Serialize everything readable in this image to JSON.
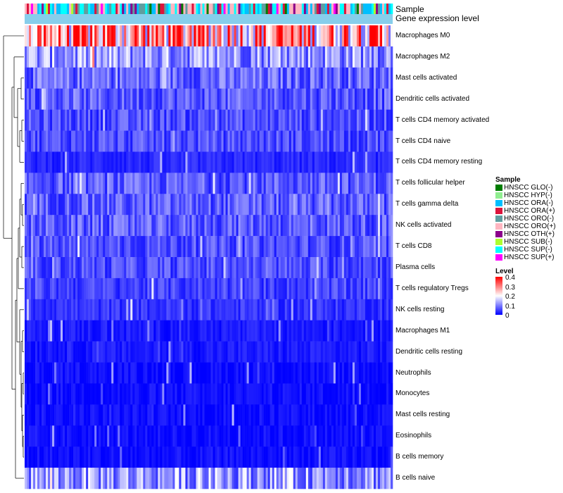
{
  "chart_data": {
    "type": "heatmap",
    "title": "",
    "annotation_rows": [
      "Sample",
      "Gene expression level"
    ],
    "rows": [
      "Macrophages M0",
      "Macrophages M2",
      "Mast cells activated",
      "Dendritic cells activated",
      "T cells CD4 memory activated",
      "T cells CD4 naive",
      "T cells CD4 memory resting",
      "T cells follicular helper",
      "T cells gamma delta",
      "NK cells activated",
      "T cells CD8",
      "Plasma cells",
      "T cells regulatory  Tregs",
      "NK cells resting",
      "Macrophages M1",
      "Dendritic cells resting",
      "Neutrophils",
      "Monocytes",
      "Mast cells resting",
      "Eosinophils",
      "B cells memory",
      "B cells naive"
    ],
    "row_mean_level": [
      0.28,
      0.12,
      0.08,
      0.07,
      0.06,
      0.06,
      0.03,
      0.07,
      0.07,
      0.07,
      0.06,
      0.06,
      0.05,
      0.04,
      0.02,
      0.02,
      0.01,
      0.01,
      0.01,
      0.01,
      0.01,
      0.12
    ],
    "n_samples": 174,
    "sample_legend": {
      "title": "Sample",
      "items": [
        {
          "label": "HNSCC GLO(-)",
          "color": "#007d00"
        },
        {
          "label": "HNSCC HYP(-)",
          "color": "#90ee90"
        },
        {
          "label": "HNSCC ORA(-)",
          "color": "#00bfff"
        },
        {
          "label": "HNSCC ORA(+)",
          "color": "#dc143c"
        },
        {
          "label": "HNSCC ORO(-)",
          "color": "#5f9ea0"
        },
        {
          "label": "HNSCC ORO(+)",
          "color": "#ffb6c1"
        },
        {
          "label": "HNSCC OTH(+)",
          "color": "#8b008b"
        },
        {
          "label": "HNSCC SUB(-)",
          "color": "#adff2f"
        },
        {
          "label": "HNSCC SUP(-)",
          "color": "#00ffff"
        },
        {
          "label": "HNSCC SUP(+)",
          "color": "#ff00ff"
        }
      ]
    },
    "level_legend": {
      "title": "Level",
      "ticks": [
        "0.4",
        "0.3",
        "0.2",
        "0.1",
        "0"
      ],
      "range": [
        0,
        0.4
      ],
      "colors": [
        "#0000ff",
        "#ffffff",
        "#ff0000"
      ]
    },
    "gene_expression_bar_color": "#87ceeb"
  }
}
